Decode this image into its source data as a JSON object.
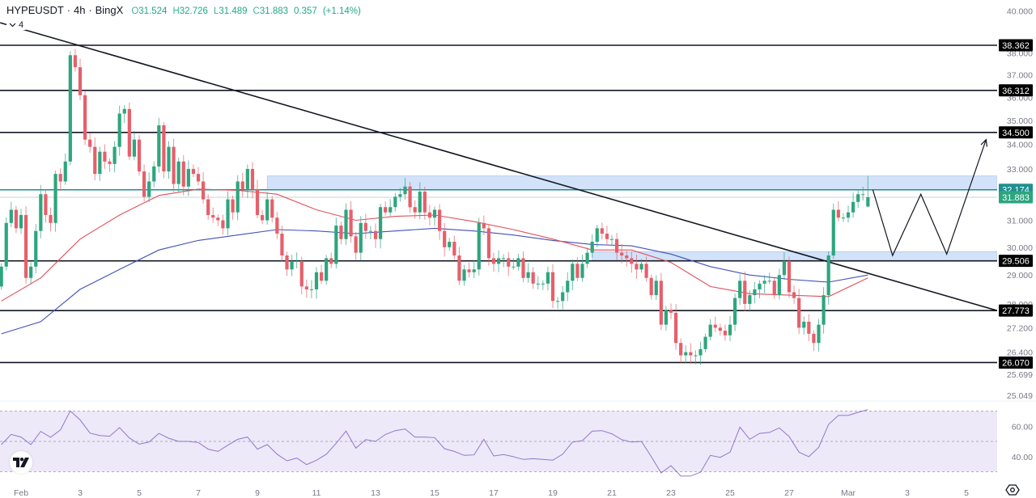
{
  "header": {
    "symbol": "HYPEUSDT",
    "interval": "4h",
    "exchange": "BingX",
    "separator": "·",
    "ohlc": {
      "o_label": "O",
      "o": "31.524",
      "h_label": "H",
      "h": "32.726",
      "l_label": "L",
      "l": "31.489",
      "c_label": "C",
      "c": "31.883",
      "change": "0.357",
      "change_pct": "(+1.14%)"
    }
  },
  "indicator_toggle": {
    "icon": "chevron-down-icon",
    "count": "4"
  },
  "logo": {
    "text": "TV"
  },
  "colors": {
    "up": "#2ea57e",
    "down": "#e5606b",
    "ma_fast": "#e0505c",
    "ma_slow": "#3f51b5",
    "level_line": "#131722",
    "current_line": "#1f8f8f",
    "zone_fill": "#c7dbf7",
    "rsi_line": "#7e57c2",
    "rsi_band": "#ede9f8"
  },
  "chart_data": {
    "type": "candlestick",
    "interval": "4h",
    "y_scale": "log",
    "ylim": [
      25.049,
      40.0
    ],
    "grid": false,
    "closes": [
      29.3,
      30.9,
      31.4,
      30.7,
      31.2,
      28.9,
      29.3,
      30.6,
      32.0,
      31.2,
      30.9,
      32.8,
      32.5,
      33.3,
      37.9,
      37.35,
      36.1,
      34.2,
      33.9,
      32.8,
      33.7,
      33.3,
      33.2,
      33.9,
      35.3,
      35.5,
      33.5,
      34.2,
      32.9,
      31.9,
      32.5,
      33.1,
      34.8,
      32.9,
      33.9,
      32.4,
      33.3,
      32.3,
      33.0,
      32.8,
      32.5,
      31.8,
      31.2,
      31.1,
      31.0,
      30.7,
      31.8,
      31.3,
      32.5,
      32.2,
      33.0,
      32.2,
      31.2,
      31.0,
      31.8,
      31.1,
      30.5,
      29.7,
      29.2,
      29.5,
      29.5,
      28.6,
      28.5,
      28.5,
      29.1,
      28.8,
      29.6,
      29.4,
      30.8,
      30.3,
      31.4,
      30.4,
      29.8,
      30.9,
      30.6,
      30.6,
      30.3,
      31.5,
      31.3,
      31.5,
      31.9,
      32.0,
      32.3,
      31.5,
      31.3,
      32.1,
      31.3,
      31.1,
      31.4,
      30.6,
      30.0,
      30.2,
      29.7,
      28.8,
      29.2,
      29.1,
      29.2,
      30.9,
      30.7,
      29.6,
      29.4,
      29.6,
      29.6,
      29.3,
      29.3,
      29.6,
      28.9,
      29.1,
      28.7,
      28.7,
      28.7,
      29.1,
      28.1,
      28.1,
      28.4,
      28.8,
      29.4,
      28.9,
      29.4,
      29.8,
      30.2,
      30.7,
      30.5,
      30.3,
      30.3,
      29.8,
      29.7,
      29.6,
      29.4,
      29.2,
      29.4,
      28.9,
      28.3,
      28.8,
      27.3,
      27.8,
      27.7,
      26.7,
      26.3,
      26.4,
      26.3,
      26.3,
      26.5,
      26.9,
      27.3,
      27.2,
      27.1,
      26.95,
      27.3,
      28.2,
      28.8,
      28.0,
      28.3,
      28.5,
      28.7,
      28.8,
      28.8,
      28.3,
      29.0,
      29.5,
      28.4,
      28.2,
      27.2,
      27.4,
      27.0,
      26.7,
      27.3,
      28.3,
      29.7,
      31.4,
      31.1,
      31.1,
      31.3,
      31.7,
      32.0,
      32.0,
      31.883
    ],
    "last_candle": {
      "o": 31.524,
      "h": 32.726,
      "l": 31.489,
      "c": 31.883
    },
    "ma_fast_every_8_candles": [
      28.1,
      28.9,
      30.3,
      31.2,
      31.95,
      32.2,
      32.15,
      32.0,
      31.4,
      31.0,
      31.15,
      31.2,
      30.95,
      30.65,
      30.3,
      29.9,
      29.9,
      29.45,
      28.6,
      28.35,
      28.3,
      28.25,
      28.9
    ],
    "ma_slow_every_8_candles": [
      27.0,
      27.4,
      28.5,
      29.2,
      29.9,
      30.25,
      30.45,
      30.65,
      30.6,
      30.5,
      30.6,
      30.7,
      30.6,
      30.45,
      30.25,
      30.1,
      30.05,
      29.75,
      29.3,
      29.0,
      28.85,
      28.75,
      29.0
    ],
    "levels": [
      {
        "price": 38.362,
        "label": "38.362"
      },
      {
        "price": 36.312,
        "label": "36.312"
      },
      {
        "price": 34.5,
        "label": "34.500"
      },
      {
        "price": 29.506,
        "label": "29.506"
      },
      {
        "price": 27.773,
        "label": "27.773"
      },
      {
        "price": 26.07,
        "label": "26.070"
      }
    ],
    "resistance_line": {
      "price": 32.174,
      "label": "32.174"
    },
    "current_price": {
      "price": 31.883,
      "label": "31.883"
    },
    "zones": [
      {
        "from": "Feb 9 08:00",
        "top": 32.72,
        "bottom": 32.174
      },
      {
        "from": "Feb 20 08:00",
        "top": 29.84,
        "bottom": 29.506
      }
    ],
    "trendline": {
      "start": {
        "time": "Jan 31 07:00",
        "price": 39.43
      },
      "end": {
        "time": "Mar 6 01:00",
        "price": 27.773
      }
    },
    "projection_path": [
      {
        "time": "Mar 1 20:00",
        "price": 32.17
      },
      {
        "time": "Mar 2 12:00",
        "price": 29.7
      },
      {
        "time": "Mar 3 11:00",
        "price": 32.0
      },
      {
        "time": "Mar 4 08:00",
        "price": 29.75
      },
      {
        "time": "Mar 5 16:00",
        "price": 34.2
      }
    ],
    "y_ticks": [
      {
        "price": 40.0,
        "label": "40.000"
      },
      {
        "price": 38.0,
        "label": "38.000"
      },
      {
        "price": 37.0,
        "label": "37.000"
      },
      {
        "price": 36.0,
        "label": "36.000"
      },
      {
        "price": 35.0,
        "label": "35.000"
      },
      {
        "price": 34.0,
        "label": "34.000"
      },
      {
        "price": 33.0,
        "label": "33.000"
      },
      {
        "price": 31.0,
        "label": "31.000"
      },
      {
        "price": 30.0,
        "label": "30.000"
      },
      {
        "price": 29.0,
        "label": "29.000"
      },
      {
        "price": 28.0,
        "label": "28.000"
      },
      {
        "price": 27.2,
        "label": "27.200"
      },
      {
        "price": 26.4,
        "label": "26.400"
      },
      {
        "price": 25.699,
        "label": "25.699"
      },
      {
        "price": 25.049,
        "label": "25.049"
      }
    ],
    "x_ticks": [
      {
        "time": "Feb 1 00:00",
        "label": "Feb"
      },
      {
        "time": "Feb 3 00:00",
        "label": "3"
      },
      {
        "time": "Feb 5 00:00",
        "label": "5"
      },
      {
        "time": "Feb 7 00:00",
        "label": "7"
      },
      {
        "time": "Feb 9 00:00",
        "label": "9"
      },
      {
        "time": "Feb 11 00:00",
        "label": "11"
      },
      {
        "time": "Feb 13 00:00",
        "label": "13"
      },
      {
        "time": "Feb 15 00:00",
        "label": "15"
      },
      {
        "time": "Feb 17 00:00",
        "label": "17"
      },
      {
        "time": "Feb 19 00:00",
        "label": "19"
      },
      {
        "time": "Feb 21 00:00",
        "label": "21"
      },
      {
        "time": "Feb 23 00:00",
        "label": "23"
      },
      {
        "time": "Feb 25 00:00",
        "label": "25"
      },
      {
        "time": "Feb 27 00:00",
        "label": "27"
      },
      {
        "time": "Mar 1 00:00",
        "label": "Mar"
      },
      {
        "time": "Mar 3 00:00",
        "label": "3"
      },
      {
        "time": "Mar 5 00:00",
        "label": "5"
      }
    ],
    "rsi": {
      "ylim": [
        30,
        70
      ],
      "bands": [
        30,
        50,
        70
      ],
      "ticks": [
        {
          "value": 60,
          "label": "60.00"
        },
        {
          "value": 40,
          "label": "40.00"
        }
      ],
      "values_every_2_candles": [
        47.9,
        54.6,
        52.9,
        47.9,
        56.6,
        52.7,
        57.6,
        70.1,
        64.2,
        55.5,
        53.9,
        53.4,
        59.1,
        52.3,
        48.2,
        49.6,
        55.3,
        52.1,
        50.0,
        50.0,
        49.3,
        44.9,
        43.4,
        47.5,
        51.4,
        52.9,
        44.9,
        47.9,
        41.6,
        37.2,
        39.0,
        34.7,
        37.6,
        41.6,
        48.8,
        56.8,
        45.6,
        51.2,
        50.0,
        54.6,
        57.1,
        58.2,
        52.9,
        52.9,
        52.5,
        45.2,
        43.4,
        40.8,
        41.1,
        51.4,
        40.4,
        41.3,
        39.9,
        38.1,
        38.6,
        38.1,
        37.6,
        41.6,
        49.6,
        50.5,
        56.8,
        57.1,
        55.0,
        51.1,
        49.6,
        50.0,
        39.9,
        29.2,
        34.0,
        27.1,
        27.2,
        29.7,
        40.8,
        39.5,
        42.9,
        59.4,
        51.4,
        55.3,
        55.9,
        58.9,
        53.2,
        42.9,
        39.9,
        46.1,
        61.2,
        67.1,
        67.1,
        69.2,
        71.0
      ]
    }
  }
}
